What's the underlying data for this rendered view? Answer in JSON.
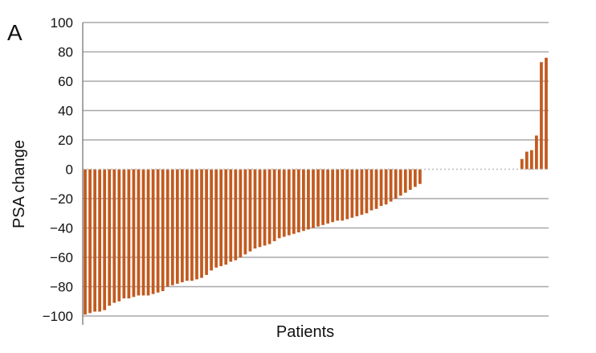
{
  "panel_label": "A",
  "colors": {
    "bar": "#c25a1f",
    "grid": "#a8a8a8",
    "axis": "#888888"
  },
  "chart_data": {
    "type": "bar",
    "panel_label": "A",
    "title": "",
    "xlabel": "Patients",
    "ylabel": "PSA change",
    "ylim": [
      -100,
      100
    ],
    "yticks": [
      100,
      80,
      60,
      40,
      20,
      0,
      -20,
      -40,
      -60,
      -80,
      -100
    ],
    "ytick_labels": [
      "100",
      "80",
      "60",
      "40",
      "20",
      "0",
      "−20",
      "−40",
      "−60",
      "−80",
      "−100"
    ],
    "grid": "horizontal",
    "legend": "none",
    "values": [
      -99,
      -98,
      -97,
      -97,
      -96,
      -93,
      -91,
      -90,
      -88,
      -88,
      -87,
      -86,
      -86,
      -86,
      -85,
      -84,
      -83,
      -80,
      -79,
      -78,
      -77,
      -76,
      -76,
      -75,
      -74,
      -72,
      -69,
      -67,
      -66,
      -65,
      -63,
      -62,
      -60,
      -58,
      -56,
      -54,
      -53,
      -52,
      -51,
      -49,
      -47,
      -46,
      -45,
      -44,
      -43,
      -42,
      -41,
      -40,
      -39,
      -38,
      -37,
      -36,
      -35,
      -35,
      -34,
      -33,
      -32,
      -31,
      -30,
      -28,
      -27,
      -25,
      -24,
      -22,
      -20,
      -18,
      -16,
      -14,
      -12,
      -10,
      0,
      0,
      0,
      0,
      0,
      0,
      0,
      0,
      0,
      0,
      0,
      0,
      0,
      0,
      0,
      0,
      0,
      0,
      0,
      0,
      7,
      12,
      13,
      23,
      73,
      76
    ]
  }
}
